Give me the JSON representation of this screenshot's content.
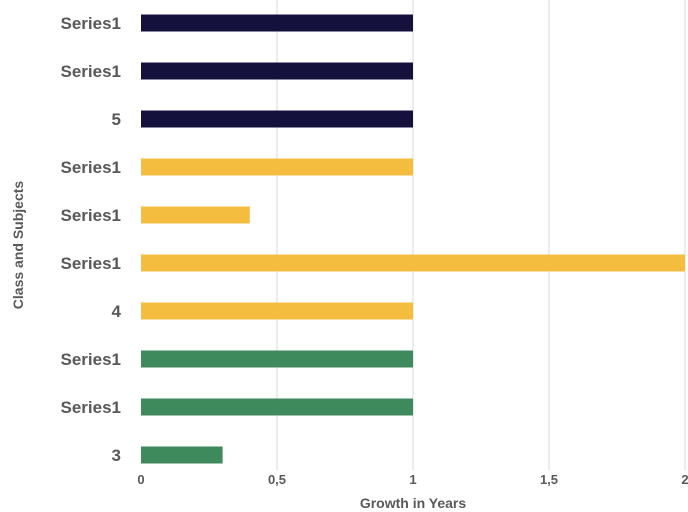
{
  "chart_data": {
    "type": "bar",
    "orientation": "horizontal",
    "xlabel": "Growth in Years",
    "ylabel": "Class and Subjects",
    "xlim": [
      0,
      2
    ],
    "x_ticks": [
      "0",
      "0,5",
      "1",
      "1,5",
      "2"
    ],
    "grid": "vertical",
    "categories": [
      "Series1",
      "Series1",
      "5",
      "Series1",
      "Series1",
      "Series1",
      "4",
      "Series1",
      "Series1",
      "3"
    ],
    "values": [
      1,
      1,
      1,
      1,
      0.4,
      2,
      1,
      1,
      1,
      0.3
    ],
    "bar_colors": [
      "#14123d",
      "#14123d",
      "#14123d",
      "#f5bd3f",
      "#f5bd3f",
      "#f5bd3f",
      "#f5bd3f",
      "#3e8a5c",
      "#3e8a5c",
      "#3e8a5c"
    ]
  }
}
